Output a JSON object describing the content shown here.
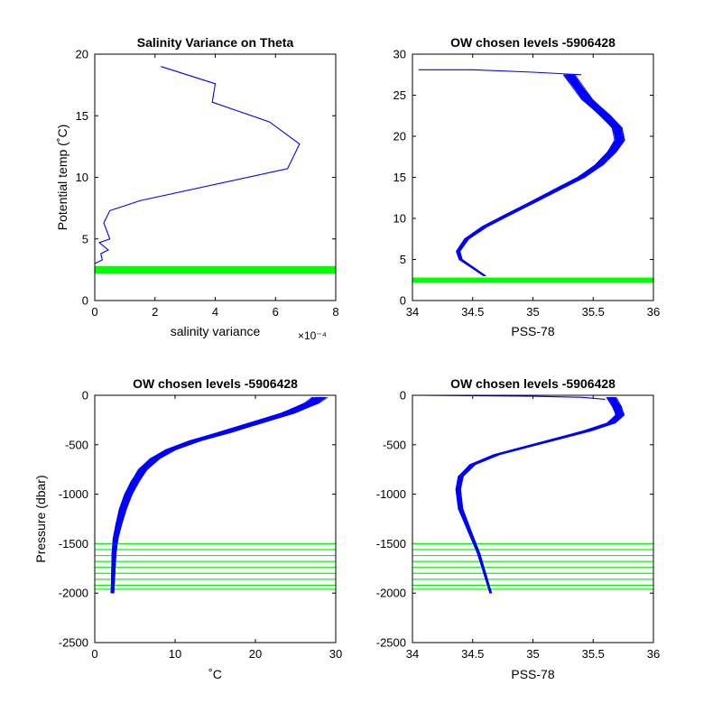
{
  "chart_data": [
    {
      "id": "ax1",
      "type": "line",
      "title": "Salinity Variance on Theta",
      "xlabel": "salinity variance",
      "ylabel": "Potential temp (˚C)",
      "x_exponent_label": "×10⁻⁴",
      "xlim": [
        0,
        8
      ],
      "ylim": [
        0,
        20
      ],
      "xticks": [
        0,
        2,
        4,
        6,
        8
      ],
      "yticks": [
        0,
        5,
        10,
        15,
        20
      ],
      "colors": {
        "series": "#0000ff",
        "levels": "#00ff00"
      },
      "series": [
        {
          "x": [
            2.2,
            4.0,
            3.9,
            5.8,
            6.8,
            6.4,
            1.5,
            0.5,
            0.3,
            0.5,
            0.15,
            0.45,
            0.2,
            0.25,
            0.0
          ],
          "y": [
            19.0,
            17.6,
            16.1,
            14.5,
            12.7,
            10.7,
            8.1,
            7.3,
            6.3,
            5.0,
            4.7,
            4.1,
            3.8,
            3.3,
            3.0
          ]
        }
      ],
      "level_band": {
        "y_range": [
          2.2,
          2.8
        ]
      }
    },
    {
      "id": "ax2",
      "type": "line",
      "title": "OW chosen levels -5906428",
      "xlabel": "PSS-78",
      "ylabel": "",
      "xlim": [
        34,
        36
      ],
      "ylim": [
        0,
        30
      ],
      "xticks": [
        34,
        34.5,
        35,
        35.5,
        36
      ],
      "yticks": [
        0,
        5,
        10,
        15,
        20,
        25,
        30
      ],
      "colors": {
        "series": "#0000ff",
        "levels": "#00ff00"
      },
      "profile": {
        "x": [
          34.6,
          34.5,
          34.4,
          34.38,
          34.45,
          34.6,
          34.8,
          35.0,
          35.2,
          35.4,
          35.55,
          35.65,
          35.72,
          35.7,
          35.6,
          35.45,
          35.3
        ],
        "y": [
          3.0,
          4.0,
          5.0,
          6.0,
          7.5,
          9.0,
          10.5,
          12.0,
          13.5,
          15.0,
          16.5,
          18.0,
          19.5,
          21.0,
          22.5,
          24.5,
          27.5
        ]
      },
      "profile_count": 40,
      "profile_spread_x": 0.06,
      "surface_segment": {
        "x": [
          34.05,
          34.5,
          35.0,
          35.4
        ],
        "y": [
          28.1,
          28.1,
          27.8,
          27.5
        ]
      },
      "level_band": {
        "y_range": [
          2.2,
          2.8
        ]
      }
    },
    {
      "id": "ax3",
      "type": "line",
      "title": "OW chosen levels -5906428",
      "xlabel": "˚C",
      "ylabel": "Pressure (dbar)",
      "xlim": [
        0,
        30
      ],
      "ylim": [
        -2500,
        0
      ],
      "xticks": [
        0,
        10,
        20,
        30
      ],
      "yticks": [
        -2500,
        -2000,
        -1500,
        -1000,
        -500,
        0
      ],
      "colors": {
        "series": "#0000ff",
        "levels": "#00ff00"
      },
      "profile": {
        "x": [
          2.2,
          2.3,
          2.4,
          2.6,
          3.0,
          3.5,
          4.2,
          5.0,
          6.0,
          7.5,
          9.5,
          12.5,
          16.0,
          20.0,
          24.0,
          27.0,
          28.0
        ],
        "y": [
          -2000,
          -1800,
          -1600,
          -1450,
          -1300,
          -1150,
          -1000,
          -870,
          -750,
          -640,
          -550,
          -460,
          -380,
          -280,
          -180,
          -80,
          -20
        ]
      },
      "profile_count": 40,
      "profile_spread_x": 1.2,
      "levels_y": [
        -1500,
        -1560,
        -1620,
        -1680,
        -1740,
        -1800,
        -1860,
        -1920,
        -1960
      ]
    },
    {
      "id": "ax4",
      "type": "line",
      "title": "OW chosen levels -5906428",
      "xlabel": "PSS-78",
      "ylabel": "",
      "xlim": [
        34,
        36
      ],
      "ylim": [
        -2500,
        0
      ],
      "xticks": [
        34,
        34.5,
        35,
        35.5,
        36
      ],
      "yticks": [
        -2500,
        -2000,
        -1500,
        -1000,
        -500,
        0
      ],
      "colors": {
        "series": "#0000ff",
        "levels": "#00ff00"
      },
      "profile": {
        "x": [
          34.65,
          34.6,
          34.55,
          34.5,
          34.45,
          34.4,
          34.38,
          34.4,
          34.5,
          34.7,
          34.95,
          35.2,
          35.45,
          35.65,
          35.72,
          35.7,
          35.65
        ],
        "y": [
          -2000,
          -1800,
          -1600,
          -1450,
          -1300,
          -1150,
          -950,
          -820,
          -700,
          -600,
          -520,
          -440,
          -360,
          -280,
          -200,
          -120,
          -20
        ]
      },
      "profile_count": 40,
      "profile_spread_x": 0.05,
      "surface_segment": {
        "x": [
          34.05,
          34.5,
          35.0,
          35.4,
          35.6
        ],
        "y": [
          0,
          -5,
          -10,
          -20,
          -40
        ]
      },
      "levels_y": [
        -1500,
        -1560,
        -1620,
        -1680,
        -1740,
        -1800,
        -1860,
        -1920,
        -1960
      ]
    }
  ]
}
